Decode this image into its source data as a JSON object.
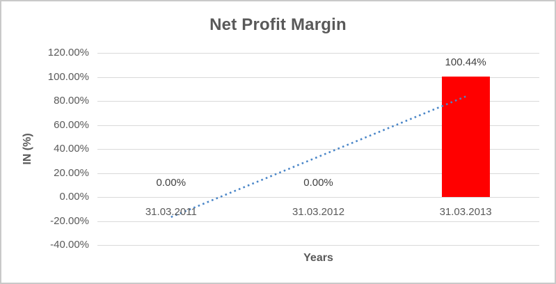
{
  "chart_data": {
    "type": "bar",
    "title": "Net Profit Margin",
    "xlabel": "Years",
    "ylabel": "IN (%)",
    "categories": [
      "31.03.2011",
      "31.03.2012",
      "31.03.2013"
    ],
    "series": [
      {
        "name": "Net Profit Margin",
        "values": [
          0,
          0,
          100.44
        ]
      }
    ],
    "data_labels": [
      "0.00%",
      "0.00%",
      "100.44%"
    ],
    "bar_color": "#ff0000",
    "grid": true,
    "legend_position": "none",
    "y_axis": {
      "min": -40,
      "max": 120,
      "step": 20,
      "tick_labels": [
        "120.00%",
        "100.00%",
        "80.00%",
        "60.00%",
        "40.00%",
        "20.00%",
        "0.00%",
        "-20.00%",
        "-40.00%"
      ]
    },
    "trendline": {
      "type": "linear",
      "style": "dotted",
      "color": "#4a86c8",
      "start_value": -16.7,
      "end_value": 83.7
    },
    "colors": {
      "text": "#595959",
      "data_label_text": "#404040",
      "gridline": "#d9d9d9",
      "border": "#c9c9c9",
      "background": "#ffffff"
    }
  }
}
